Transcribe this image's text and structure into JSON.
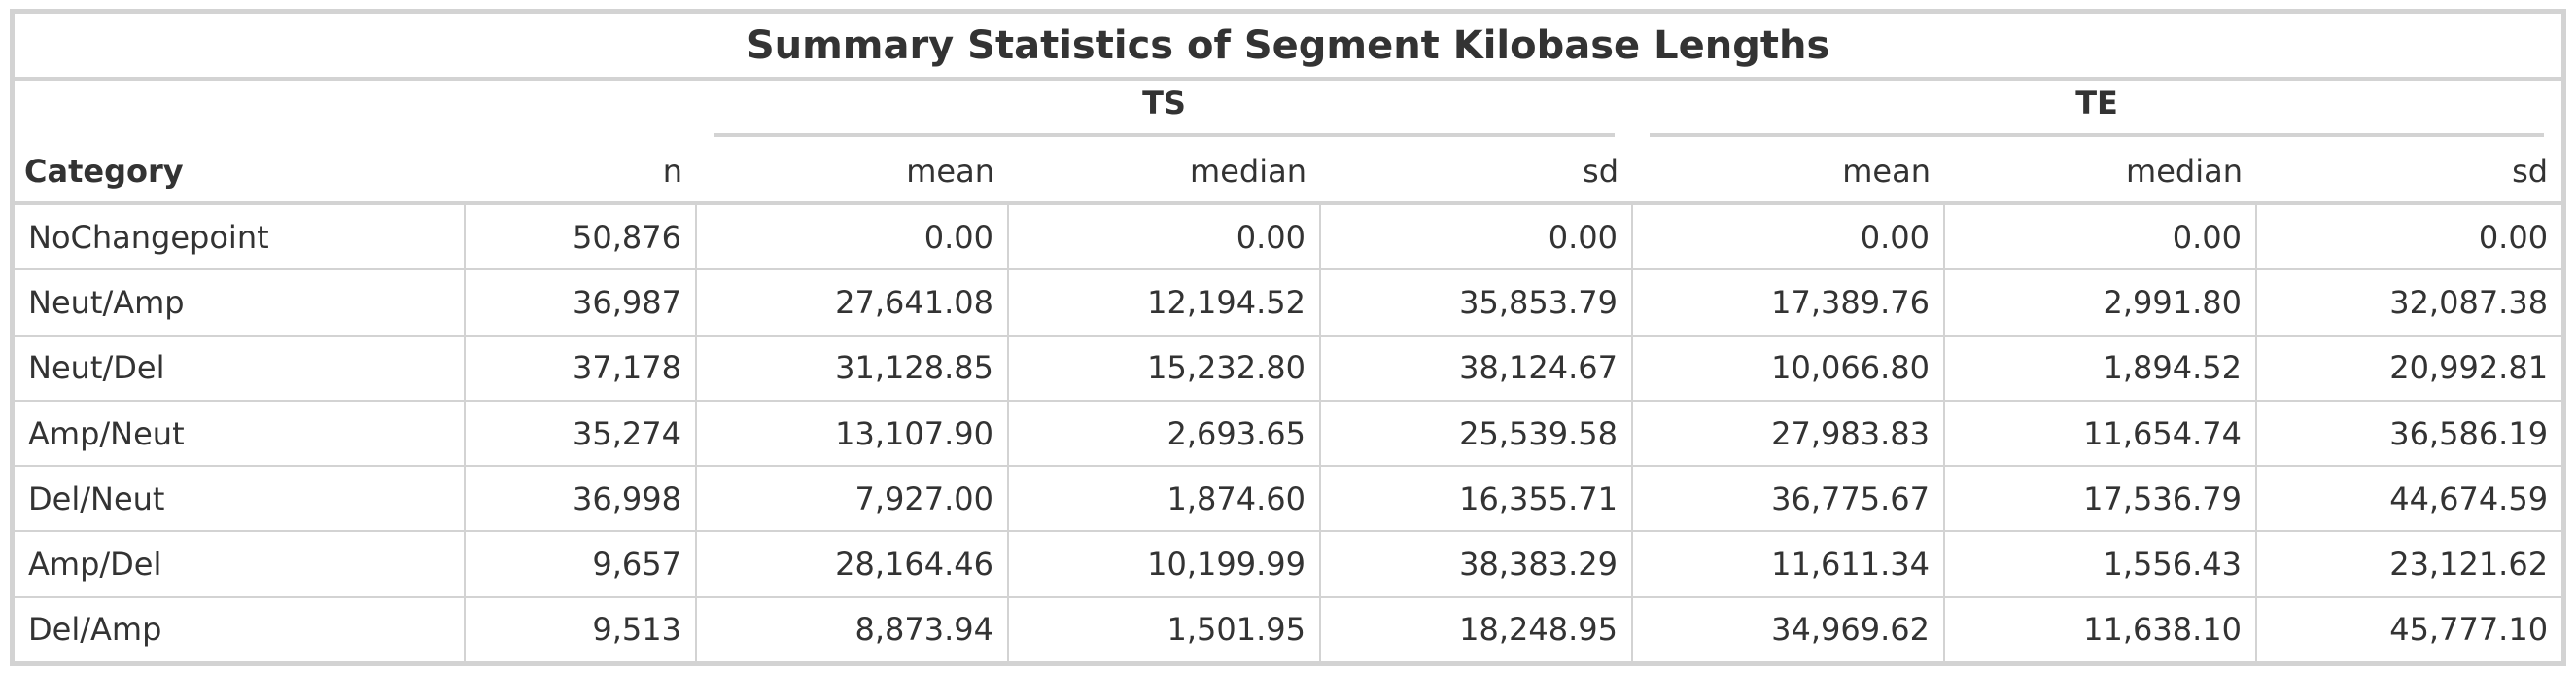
{
  "title": "Summary Statistics of Segment Kilobase Lengths",
  "spanners": [
    {
      "label": "TS"
    },
    {
      "label": "TE"
    }
  ],
  "columns": {
    "category": "Category",
    "n": "n",
    "ts_mean": "mean",
    "ts_median": "median",
    "ts_sd": "sd",
    "te_mean": "mean",
    "te_median": "median",
    "te_sd": "sd"
  },
  "rows": [
    {
      "category": "NoChangepoint",
      "n": "50,876",
      "ts_mean": "0.00",
      "ts_median": "0.00",
      "ts_sd": "0.00",
      "te_mean": "0.00",
      "te_median": "0.00",
      "te_sd": "0.00"
    },
    {
      "category": "Neut/Amp",
      "n": "36,987",
      "ts_mean": "27,641.08",
      "ts_median": "12,194.52",
      "ts_sd": "35,853.79",
      "te_mean": "17,389.76",
      "te_median": "2,991.80",
      "te_sd": "32,087.38"
    },
    {
      "category": "Neut/Del",
      "n": "37,178",
      "ts_mean": "31,128.85",
      "ts_median": "15,232.80",
      "ts_sd": "38,124.67",
      "te_mean": "10,066.80",
      "te_median": "1,894.52",
      "te_sd": "20,992.81"
    },
    {
      "category": "Amp/Neut",
      "n": "35,274",
      "ts_mean": "13,107.90",
      "ts_median": "2,693.65",
      "ts_sd": "25,539.58",
      "te_mean": "27,983.83",
      "te_median": "11,654.74",
      "te_sd": "36,586.19"
    },
    {
      "category": "Del/Neut",
      "n": "36,998",
      "ts_mean": "7,927.00",
      "ts_median": "1,874.60",
      "ts_sd": "16,355.71",
      "te_mean": "36,775.67",
      "te_median": "17,536.79",
      "te_sd": "44,674.59"
    },
    {
      "category": "Amp/Del",
      "n": "9,657",
      "ts_mean": "28,164.46",
      "ts_median": "10,199.99",
      "ts_sd": "38,383.29",
      "te_mean": "11,611.34",
      "te_median": "1,556.43",
      "te_sd": "23,121.62"
    },
    {
      "category": "Del/Amp",
      "n": "9,513",
      "ts_mean": "8,873.94",
      "ts_median": "1,501.95",
      "ts_sd": "18,248.95",
      "te_mean": "34,969.62",
      "te_median": "11,638.10",
      "te_sd": "45,777.10"
    }
  ]
}
